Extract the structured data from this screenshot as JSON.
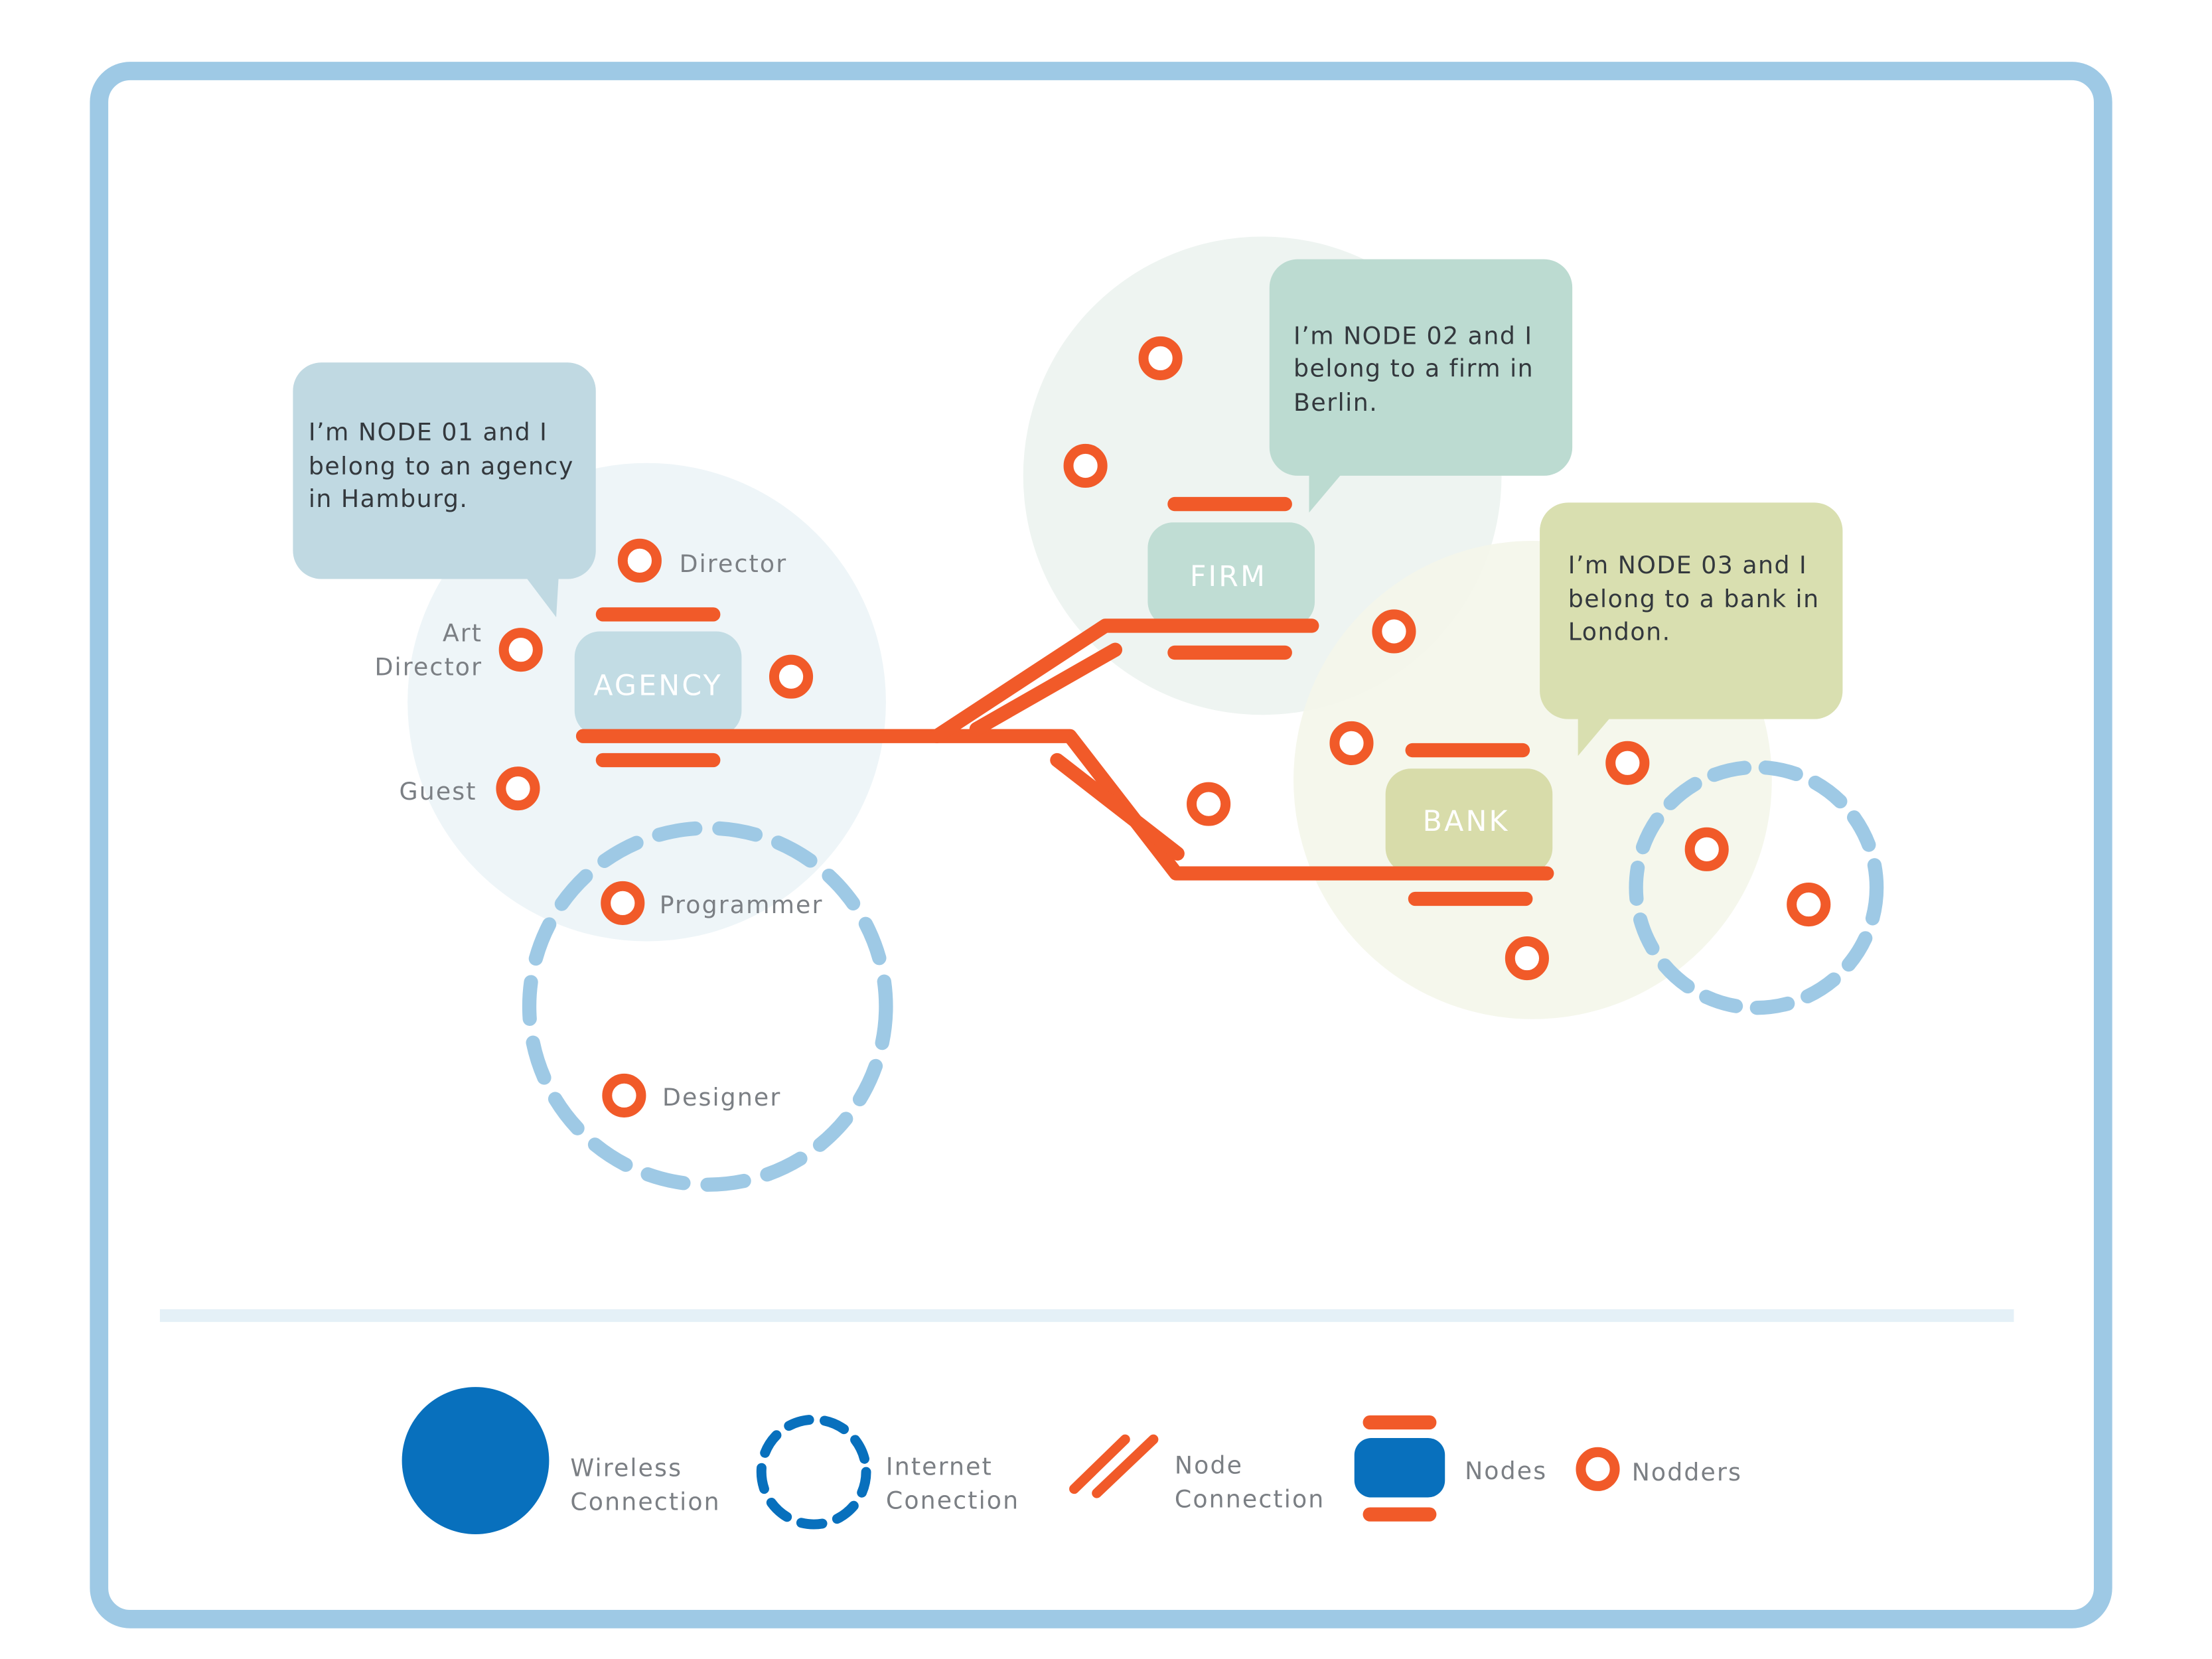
{
  "colors": {
    "frame": "#9ec9e5",
    "accent": "#f15a29",
    "dash": "#9ec9e5",
    "legend_blue": "#0870bd",
    "zone_agency": "#eef5f8",
    "zone_firm": "#eef4f1",
    "zone_bank": "#f4f6ea",
    "bubble_agency": "#c0d9e2",
    "bubble_firm": "#bcdbd1",
    "bubble_bank": "#d9dfb0",
    "node_agency": "#c2dce4",
    "node_firm": "#c0ddd4",
    "node_bank": "#d8dcaa"
  },
  "nodes": {
    "agency": "AGENCY",
    "firm": "FIRM",
    "bank": "BANK"
  },
  "bubbles": {
    "agency": [
      "I’m NODE 01 and I",
      "belong to an agency",
      "in Hamburg."
    ],
    "firm": [
      "I’m NODE 02 and I",
      "belong to a firm in",
      "Berlin."
    ],
    "bank": [
      "I’m NODE 03 and I",
      "belong to a bank in",
      "London."
    ]
  },
  "roles": {
    "director": "Director",
    "art_director": [
      "Art",
      "Director"
    ],
    "guest": "Guest",
    "programmer": "Programmer",
    "designer": "Designer"
  },
  "legend": {
    "wireless": [
      "Wireless",
      "Connection"
    ],
    "internet": [
      "Internet",
      "Conection"
    ],
    "node_connection": [
      "Node",
      "Connection"
    ],
    "nodes": "Nodes",
    "nodders": "Nodders"
  }
}
